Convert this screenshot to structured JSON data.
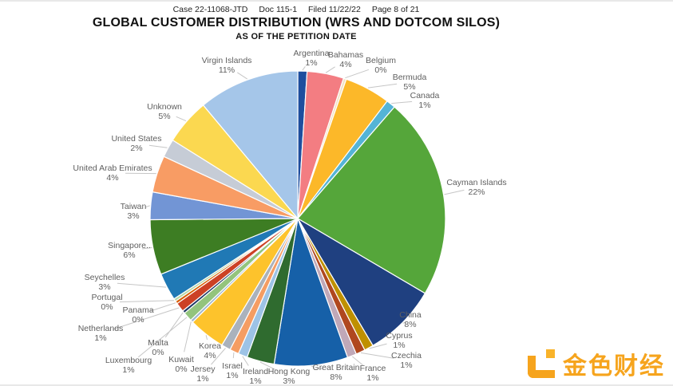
{
  "header": {
    "case_line_parts": [
      "Case 22-11068-JTD",
      "Doc 115-1",
      "Filed 11/22/22",
      "Page 8 of 21"
    ]
  },
  "watermark": {
    "text": "金色财经",
    "brand_color": "#f6a41d",
    "logo_icon": "jinse-logo"
  },
  "chart_data": {
    "type": "pie",
    "title": "GLOBAL CUSTOMER DISTRIBUTION (WRS AND DOTCOM SILOS)",
    "subtitle": "AS OF THE PETITION DATE",
    "direction": "clockwise",
    "start_angle": "top",
    "order": "alphabetical",
    "legend": "none",
    "labels_style": "outside-with-leader-lines",
    "slices": [
      {
        "label": "Argentina",
        "value": 1,
        "pct": "1%",
        "color": "#1f4e9e",
        "anchor": [
          390,
          71
        ]
      },
      {
        "label": "Bahamas",
        "value": 4,
        "pct": "4%",
        "color": "#f37d82",
        "anchor": [
          433,
          73
        ]
      },
      {
        "label": "Belgium",
        "value": 0,
        "pct": "0%",
        "color": "#f3e2c4",
        "anchor": [
          477,
          80
        ]
      },
      {
        "label": "Bermuda",
        "value": 5,
        "pct": "5%",
        "color": "#fcb829",
        "anchor": [
          513,
          101
        ]
      },
      {
        "label": "Canada",
        "value": 1,
        "pct": "1%",
        "color": "#54b4d6",
        "anchor": [
          532,
          124
        ]
      },
      {
        "label": "Cayman Islands",
        "value": 22,
        "pct": "22%",
        "color": "#55a63a",
        "anchor": [
          597,
          233
        ]
      },
      {
        "label": "China",
        "value": 8,
        "pct": "8%",
        "color": "#1f4080",
        "anchor": [
          514,
          399
        ]
      },
      {
        "label": "Cyprus",
        "value": 1,
        "pct": "1%",
        "color": "#bf9000",
        "anchor": [
          500,
          425
        ]
      },
      {
        "label": "Czechia",
        "value": 1,
        "pct": "1%",
        "color": "#b0481f",
        "anchor": [
          509,
          450
        ]
      },
      {
        "label": "France",
        "value": 1,
        "pct": "1%",
        "color": "#c0a8b8",
        "anchor": [
          467,
          466
        ]
      },
      {
        "label": "Great Britain",
        "value": 8,
        "pct": "8%",
        "color": "#1660a8",
        "anchor": [
          421,
          465
        ]
      },
      {
        "label": "Hong Kong",
        "value": 3,
        "pct": "3%",
        "color": "#2f6b2f",
        "anchor": [
          362,
          470
        ]
      },
      {
        "label": "Ireland",
        "value": 1,
        "pct": "1%",
        "color": "#9dc3e6",
        "anchor": [
          320,
          470
        ]
      },
      {
        "label": "Israel",
        "value": 1,
        "pct": "1%",
        "color": "#f59d63",
        "anchor": [
          291,
          463
        ]
      },
      {
        "label": "Jersey",
        "value": 1,
        "pct": "1%",
        "color": "#aab2bc",
        "anchor": [
          254,
          467
        ]
      },
      {
        "label": "Korea",
        "value": 4,
        "pct": "4%",
        "color": "#fdc32c",
        "anchor": [
          263,
          438
        ]
      },
      {
        "label": "Kuwait",
        "value": 0,
        "pct": "0%",
        "color": "#9fb6cd",
        "anchor": [
          227,
          455
        ]
      },
      {
        "label": "Luxembourg",
        "value": 1,
        "pct": "1%",
        "color": "#93c47d",
        "anchor": [
          161,
          456
        ]
      },
      {
        "label": "Malta",
        "value": 0,
        "pct": "0%",
        "color": "#203864",
        "anchor": [
          198,
          434
        ]
      },
      {
        "label": "Netherlands",
        "value": 1,
        "pct": "1%",
        "color": "#cc4125",
        "anchor": [
          126,
          416
        ]
      },
      {
        "label": "Panama",
        "value": 0,
        "pct": "0%",
        "color": "#d95f02",
        "anchor": [
          173,
          393
        ]
      },
      {
        "label": "Portugal",
        "value": 0,
        "pct": "0%",
        "color": "#b6d7a8",
        "anchor": [
          134,
          377
        ]
      },
      {
        "label": "Seychelles",
        "value": 3,
        "pct": "3%",
        "color": "#2079b5",
        "anchor": [
          131,
          352
        ]
      },
      {
        "label": "Singapore",
        "display": "Singapore..",
        "value": 6,
        "pct": "6%",
        "color": "#3d7d23",
        "anchor": [
          162,
          312
        ]
      },
      {
        "label": "Taiwan",
        "value": 3,
        "pct": "3%",
        "color": "#7295d5",
        "anchor": [
          167,
          263
        ]
      },
      {
        "label": "United Arab Emirates",
        "value": 4,
        "pct": "4%",
        "color": "#f89c64",
        "anchor": [
          141,
          215
        ]
      },
      {
        "label": "United States",
        "value": 2,
        "pct": "2%",
        "color": "#c6ccd6",
        "anchor": [
          171,
          178
        ]
      },
      {
        "label": "Unknown",
        "value": 5,
        "pct": "5%",
        "color": "#fbd850",
        "anchor": [
          206,
          138
        ]
      },
      {
        "label": "Virgin Islands",
        "value": 11,
        "pct": "11%",
        "color": "#a5c6e9",
        "anchor": [
          284,
          80
        ]
      }
    ],
    "layout": {
      "center": [
        373,
        272
      ],
      "radius": 185,
      "min_sliver_value": 0.3,
      "label_color": "#5f5f5f",
      "leader_line_color": "#c6c6c6",
      "slice_gap_color": "#ffffff"
    }
  }
}
